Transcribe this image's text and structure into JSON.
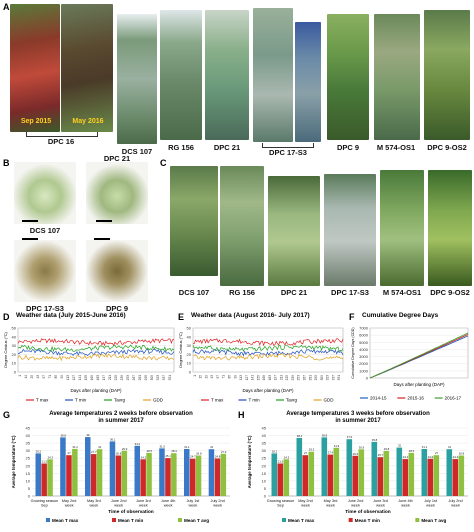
{
  "panels": {
    "A": {
      "label": "A",
      "photos": [
        {
          "caption": "DPC 16",
          "sub_left": "Sep 2015",
          "sub_right": "May 2016"
        },
        {
          "caption": "DCS 107"
        },
        {
          "caption": "RG 156"
        },
        {
          "caption": "DPC 21"
        },
        {
          "caption": "DPC 17-S3"
        },
        {
          "caption": "DPC 9"
        },
        {
          "caption": "M 574-OS1"
        },
        {
          "caption": "DPC 9-OS2"
        }
      ]
    },
    "B": {
      "label": "B",
      "photos": [
        {
          "caption": "DCS 107"
        },
        {
          "caption": "DPC 21"
        },
        {
          "caption": "DPC 17-S3"
        },
        {
          "caption": "DPC 9"
        }
      ]
    },
    "C": {
      "label": "C",
      "photos": [
        {
          "caption": "DCS 107"
        },
        {
          "caption": "RG 156"
        },
        {
          "caption": "DPC 21"
        },
        {
          "caption": "DPC 17-S3"
        },
        {
          "caption": "M 574-OS1"
        },
        {
          "caption": "DPC 9-OS2"
        }
      ]
    },
    "D": {
      "label": "D",
      "chart_data": {
        "type": "line",
        "title": "Weather data (July 2015-June 2016)",
        "xlabel": "Days after planting (DAP)",
        "ylabel": "Degree Celsius (°C)",
        "x_ticks": [
          "1",
          "14",
          "29",
          "43",
          "57",
          "71",
          "85",
          "99",
          "113",
          "127",
          "141",
          "155",
          "169",
          "183",
          "197",
          "211",
          "225",
          "239",
          "253",
          "267",
          "281",
          "295",
          "309",
          "323",
          "337",
          "351"
        ],
        "y_ticks": [
          "0",
          "10",
          "20",
          "30",
          "40",
          "50"
        ],
        "ylim": [
          0,
          50
        ],
        "legend_position": "bottom",
        "series": [
          {
            "name": "T max",
            "color": "#e02020",
            "level": 34
          },
          {
            "name": "T min",
            "color": "#2050c0",
            "level": 22
          },
          {
            "name": "Tavrg",
            "color": "#20a020",
            "level": 27
          },
          {
            "name": "GDD",
            "color": "#e0a020",
            "level": 17
          }
        ]
      }
    },
    "E": {
      "label": "E",
      "chart_data": {
        "type": "line",
        "title": "Weather data (August 2016- July 2017)",
        "xlabel": "Days after planting (DAP)",
        "ylabel": "Degree Celsius (°C)",
        "x_ticks": [
          "1",
          "15",
          "29",
          "43",
          "57",
          "71",
          "85",
          "99",
          "113",
          "127",
          "141",
          "155",
          "169",
          "183",
          "197",
          "211",
          "225",
          "239",
          "253",
          "267",
          "281",
          "295",
          "309",
          "323",
          "337",
          "351"
        ],
        "y_ticks": [
          "0",
          "10",
          "20",
          "30",
          "40",
          "50"
        ],
        "ylim": [
          0,
          50
        ],
        "legend_position": "bottom",
        "series": [
          {
            "name": "T max",
            "color": "#e02020",
            "level": 34
          },
          {
            "name": "T min",
            "color": "#2050c0",
            "level": 22
          },
          {
            "name": "Tavrg",
            "color": "#20a020",
            "level": 27
          },
          {
            "name": "GDD",
            "color": "#e0a020",
            "level": 17
          }
        ]
      }
    },
    "F": {
      "label": "F",
      "chart_data": {
        "type": "line",
        "title": "Cumulative Degree Days",
        "xlabel": "Days after planting (DAP)",
        "ylabel": "Cumulative Degree Days (CDD)",
        "y_ticks": [
          "0",
          "1000",
          "2000",
          "3000",
          "4000",
          "5000",
          "6000",
          "7000"
        ],
        "ylim": [
          0,
          7000
        ],
        "legend_position": "bottom",
        "series": [
          {
            "name": "2014-15",
            "color": "#2060c0",
            "end": 5900
          },
          {
            "name": "2015-16",
            "color": "#d02020",
            "end": 6100
          },
          {
            "name": "2016-17",
            "color": "#40a030",
            "end": 6300
          }
        ]
      }
    },
    "G": {
      "label": "G",
      "chart_data": {
        "type": "bar",
        "title": "Average temperatures  2 weeks before observation in summer 2017",
        "xlabel": "Time of observation",
        "ylabel": "Average temperature (°C)",
        "ylim": [
          0,
          45
        ],
        "y_ticks": [
          "0",
          "5",
          "10",
          "15",
          "20",
          "25",
          "30",
          "35",
          "40",
          "45"
        ],
        "categories": [
          "Growing season Sep",
          "May 2nd week",
          "May 3rd week",
          "June 2nd week",
          "June 3rd week",
          "June 4th week",
          "July 1st week",
          "July 2nd week"
        ],
        "series": [
          {
            "name": "Mean T max",
            "color": "#3a78c8",
            "values": [
              28.2,
              38.8,
              39.0,
              36.1,
              33.2,
              31.5,
              31.1,
              31.0
            ],
            "labels": [
              "28.2",
              "38.8",
              "39",
              "36.1",
              "33.2",
              "31.5",
              "31.1",
              "31"
            ]
          },
          {
            "name": "Mean T min",
            "color": "#d02828",
            "values": [
              21.5,
              27.0,
              27.7,
              26.8,
              24.3,
              25.1,
              24.7,
              24.8
            ],
            "labels": [
              "21.5",
              "27",
              "27.7",
              "26.8",
              "24.3",
              "25.1",
              "24.7",
              "24.8"
            ]
          },
          {
            "name": "Mean T avg",
            "color": "#90c040",
            "values": [
              24.3,
              31.2,
              31.0,
              29.9,
              28.5,
              28.3,
              26.8,
              27.9
            ],
            "labels": [
              "24.3",
              "31.2",
              "31",
              "29.9",
              "28.5",
              "28.3",
              "26.8",
              "27.9"
            ]
          }
        ]
      }
    },
    "H": {
      "label": "H",
      "chart_data": {
        "type": "bar",
        "title": "Average temperatures  3 weeks before observation in summer 2017",
        "xlabel": "Time of observation",
        "ylabel": "Average temperature (°C)",
        "ylim": [
          0,
          45
        ],
        "y_ticks": [
          "0",
          "5",
          "10",
          "15",
          "20",
          "25",
          "30",
          "35",
          "40",
          "45"
        ],
        "categories": [
          "Growing season Sep",
          "May 2nd week",
          "May 3rd week",
          "June 2nd week",
          "June 3rd week",
          "June 4th week",
          "July 1st week",
          "July 2nd week"
        ],
        "series": [
          {
            "name": "Mean T max",
            "color": "#2aa0a0",
            "values": [
              28.2,
              38.4,
              38.8,
              37.6,
              35.8,
              32.0,
              31.1,
              31.0
            ],
            "labels": [
              "28.2",
              "38.4",
              "38.8",
              "37.6",
              "35.8",
              "32",
              "31.1",
              "31"
            ]
          },
          {
            "name": "Mean T min",
            "color": "#d02828",
            "values": [
              21.5,
              27.0,
              27.4,
              26.6,
              25.7,
              24.4,
              24.6,
              24.4
            ],
            "labels": [
              "21.5",
              "27",
              "27.4",
              "26.6",
              "25.7",
              "24.4",
              "24.6",
              "24.4"
            ]
          },
          {
            "name": "Mean T avg",
            "color": "#90c040",
            "values": [
              24.3,
              29.3,
              31.9,
              30.9,
              29.8,
              28.5,
              27.0,
              26.8
            ],
            "labels": [
              "24.3",
              "29.3",
              "31.9",
              "30.9",
              "29.8",
              "28.5",
              "27",
              "26.8"
            ]
          }
        ]
      }
    }
  }
}
